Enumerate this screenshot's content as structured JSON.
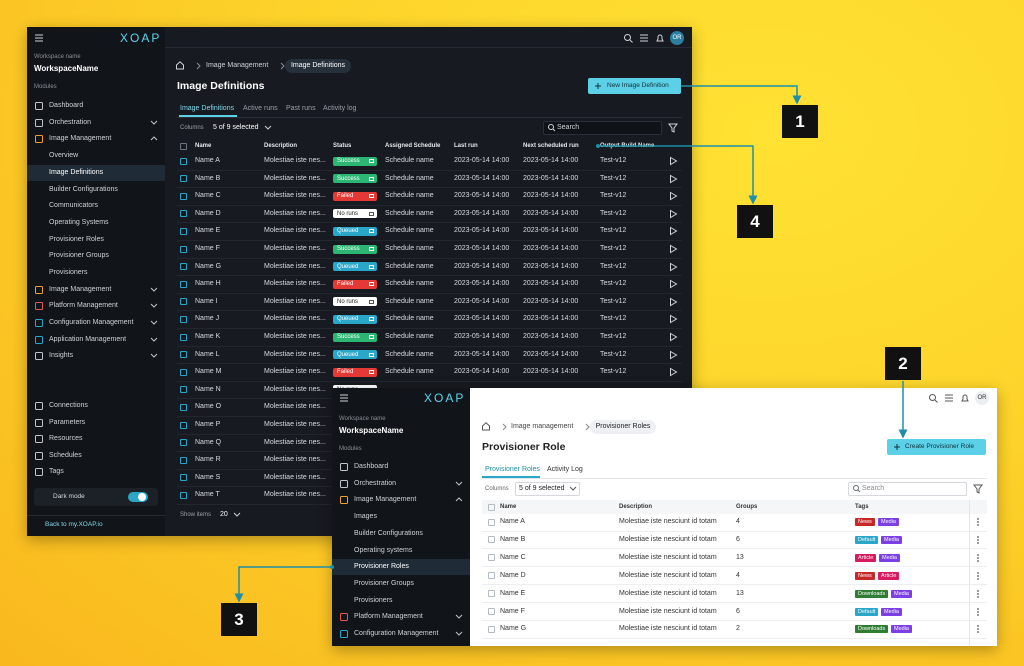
{
  "callouts": [
    "1",
    "2",
    "3",
    "4"
  ],
  "status_colors": {
    "Success": "#2bb673",
    "Failed": "#e53935",
    "No runs": "#ffffff",
    "Queued": "#2aa6c9"
  },
  "tag_colors": {
    "News": "#c62828",
    "Media": "#7b3fe4",
    "Default": "#2aa6c9",
    "Article": "#d81b60",
    "Downloads": "#2e7d32"
  },
  "dark_window": {
    "brand": "XOAP",
    "avatar": "OR",
    "workspace_label": "Workspace name",
    "workspace": "WorkspaceName",
    "modules_label": "Modules",
    "nav_top": [
      "Dashboard",
      "Orchestration",
      "Image Management"
    ],
    "sub_nav": [
      "Overview",
      "Image Definitions",
      "Builder Configurations",
      "Communicators",
      "Operating Systems",
      "Provisioner Roles",
      "Provisioner Groups",
      "Provisioners"
    ],
    "nav_rest": [
      "Image Management",
      "Platform Management",
      "Configuration Management",
      "Application Management",
      "Insights"
    ],
    "bottom_nav": [
      "Connections",
      "Parameters",
      "Resources",
      "Schedules",
      "Tags"
    ],
    "dark_mode": "Dark mode",
    "back_link": "Back to my.XOAP.io",
    "breadcrumb": [
      "Image Management",
      "Image Definitions"
    ],
    "title": "Image Definitions",
    "primary_button": "New Image Definition",
    "tabs": [
      "Image Definitions",
      "Active runs",
      "Past runs",
      "Activity log"
    ],
    "columns_label": "Columns",
    "columns_selected": "5 of 9 selected",
    "search_placeholder": "Search",
    "table": {
      "headers": [
        "Name",
        "Description",
        "Status",
        "Assigned Schedule",
        "Last run",
        "Next scheduled run",
        "Output Build Name"
      ],
      "rows": [
        [
          "Name A",
          "Molestiae iste nes...",
          "Success",
          "Schedule name",
          "2023-05-14 14:00",
          "2023-05-14 14:00",
          "Test-v12"
        ],
        [
          "Name B",
          "Molestiae iste nes...",
          "Success",
          "Schedule name",
          "2023-05-14 14:00",
          "2023-05-14 14:00",
          "Test-v12"
        ],
        [
          "Name C",
          "Molestiae iste nes...",
          "Failed",
          "Schedule name",
          "2023-05-14 14:00",
          "2023-05-14 14:00",
          "Test-v12"
        ],
        [
          "Name D",
          "Molestiae iste nes...",
          "No runs",
          "Schedule name",
          "2023-05-14 14:00",
          "2023-05-14 14:00",
          "Test-v12"
        ],
        [
          "Name E",
          "Molestiae iste nes...",
          "Queued",
          "Schedule name",
          "2023-05-14 14:00",
          "2023-05-14 14:00",
          "Test-v12"
        ],
        [
          "Name F",
          "Molestiae iste nes...",
          "Success",
          "Schedule name",
          "2023-05-14 14:00",
          "2023-05-14 14:00",
          "Test-v12"
        ],
        [
          "Name G",
          "Molestiae iste nes...",
          "Queued",
          "Schedule name",
          "2023-05-14 14:00",
          "2023-05-14 14:00",
          "Test-v12"
        ],
        [
          "Name H",
          "Molestiae iste nes...",
          "Failed",
          "Schedule name",
          "2023-05-14 14:00",
          "2023-05-14 14:00",
          "Test-v12"
        ],
        [
          "Name I",
          "Molestiae iste nes...",
          "No runs",
          "Schedule name",
          "2023-05-14 14:00",
          "2023-05-14 14:00",
          "Test-v12"
        ],
        [
          "Name J",
          "Molestiae iste nes...",
          "Queued",
          "Schedule name",
          "2023-05-14 14:00",
          "2023-05-14 14:00",
          "Test-v12"
        ],
        [
          "Name K",
          "Molestiae iste nes...",
          "Success",
          "Schedule name",
          "2023-05-14 14:00",
          "2023-05-14 14:00",
          "Test-v12"
        ],
        [
          "Name L",
          "Molestiae iste nes...",
          "Queued",
          "Schedule name",
          "2023-05-14 14:00",
          "2023-05-14 14:00",
          "Test-v12"
        ],
        [
          "Name M",
          "Molestiae iste nes...",
          "Failed",
          "Schedule name",
          "2023-05-14 14:00",
          "2023-05-14 14:00",
          "Test-v12"
        ],
        [
          "Name N",
          "Molestiae iste nes...",
          "No runs"
        ],
        [
          "Name O",
          "Molestiae iste nes..."
        ],
        [
          "Name P",
          "Molestiae iste nes..."
        ],
        [
          "Name Q",
          "Molestiae iste nes..."
        ],
        [
          "Name R",
          "Molestiae iste nes..."
        ],
        [
          "Name S",
          "Molestiae iste nes..."
        ],
        [
          "Name T",
          "Molestiae iste nes..."
        ]
      ]
    },
    "show_items_label": "Show items",
    "show_items_value": "20"
  },
  "light_window": {
    "brand": "XOAP",
    "avatar": "OR",
    "workspace_label": "Workspace name",
    "workspace": "WorkspaceName",
    "modules_label": "Modules",
    "nav_top": [
      "Dashboard",
      "Orchestration",
      "Image Management"
    ],
    "sub_nav": [
      "Images",
      "Builder Configurations",
      "Operating systems",
      "Provisioner Roles",
      "Provisioner Groups",
      "Provisioners"
    ],
    "nav_rest": [
      "Platform Management",
      "Configuration Management"
    ],
    "breadcrumb": [
      "Image management",
      "Provisioner Roles"
    ],
    "title": "Provisioner Role",
    "primary_button": "Create Provisioner Role",
    "tabs": [
      "Provisioner Roles",
      "Activity Log"
    ],
    "columns_label": "Columns",
    "columns_selected": "5 of 9 selected",
    "search_placeholder": "Search",
    "table": {
      "headers": [
        "Name",
        "Description",
        "Groups",
        "Tags"
      ],
      "rows": [
        [
          "Name A",
          "Molestiae iste nesciunt id totam",
          4,
          [
            "News",
            "Media"
          ]
        ],
        [
          "Name B",
          "Molestiae iste nesciunt id totam",
          6,
          [
            "Default",
            "Media"
          ]
        ],
        [
          "Name C",
          "Molestiae iste nesciunt id totam",
          13,
          [
            "Article",
            "Media"
          ]
        ],
        [
          "Name D",
          "Molestiae iste nesciunt id totam",
          4,
          [
            "News",
            "Article"
          ]
        ],
        [
          "Name E",
          "Molestiae iste nesciunt id totam",
          13,
          [
            "Downloads",
            "Media"
          ]
        ],
        [
          "Name F",
          "Molestiae iste nesciunt id totam",
          6,
          [
            "Default",
            "Media"
          ]
        ],
        [
          "Name G",
          "Molestiae iste nesciunt id totam",
          2,
          [
            "Downloads",
            "Media"
          ]
        ]
      ]
    }
  }
}
